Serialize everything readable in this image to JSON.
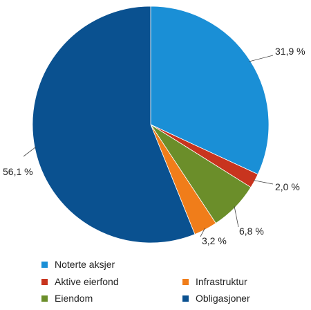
{
  "chart_data": {
    "type": "pie",
    "start_angle_deg": 0,
    "direction": "clockwise",
    "slices": [
      {
        "name": "Noterte aksjer",
        "value": 31.9,
        "label": "31,9 %",
        "color": "#1a8fd6"
      },
      {
        "name": "Aktive eierfond",
        "value": 2.0,
        "label": "2,0 %",
        "color": "#c8341e"
      },
      {
        "name": "Eiendom",
        "value": 6.8,
        "label": "6,8 %",
        "color": "#6b8e2a"
      },
      {
        "name": "Infrastruktur",
        "value": 3.2,
        "label": "3,2 %",
        "color": "#f07d1a"
      },
      {
        "name": "Obligasjoner",
        "value": 56.1,
        "label": "56,1 %",
        "color": "#0a5190"
      }
    ],
    "legend_order": [
      "Noterte aksjer",
      "Aktive eierfond",
      "Infrastruktur",
      "Eiendom",
      "Obligasjoner"
    ],
    "legend_placement": "bottom"
  }
}
